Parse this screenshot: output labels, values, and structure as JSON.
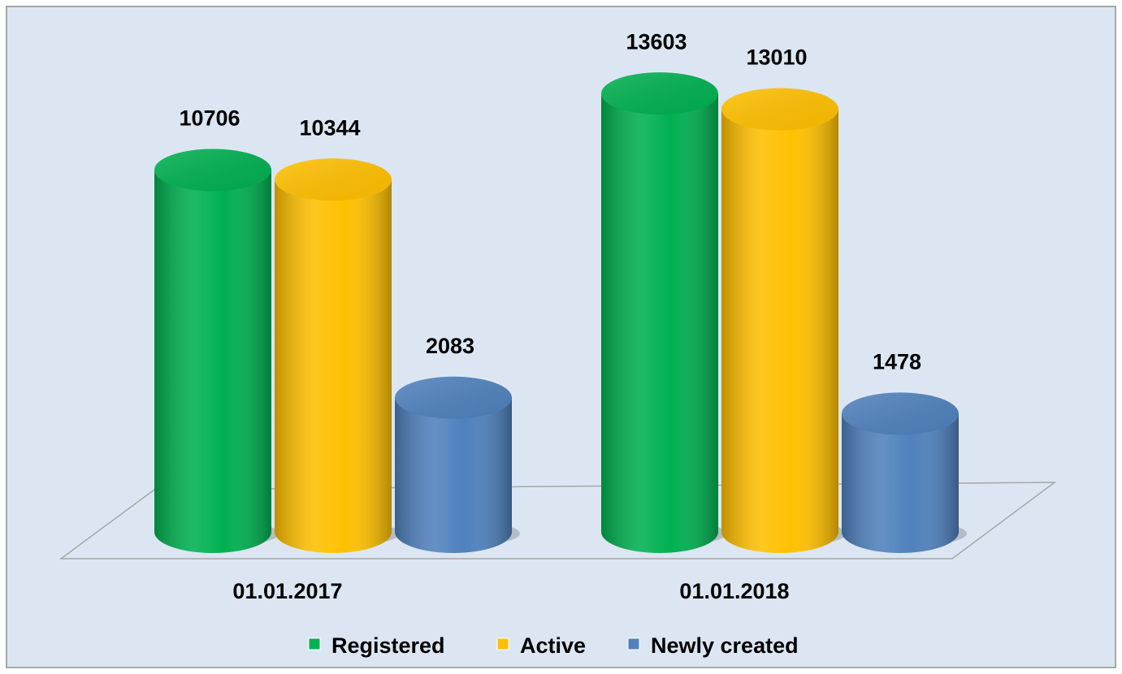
{
  "chart_data": {
    "type": "cylinder-bar",
    "categories": [
      "01.01.2017",
      "01.01.2018"
    ],
    "series": [
      {
        "name": "Registered",
        "color": "#00b050",
        "values": [
          10706,
          13603
        ]
      },
      {
        "name": "Active",
        "color": "#ffc000",
        "values": [
          10344,
          13010
        ]
      },
      {
        "name": "Newly created",
        "color": "#4f81bd",
        "values": [
          2083,
          1478
        ]
      }
    ],
    "ylim": [
      -3000,
      14500
    ],
    "legend": "bottom"
  }
}
